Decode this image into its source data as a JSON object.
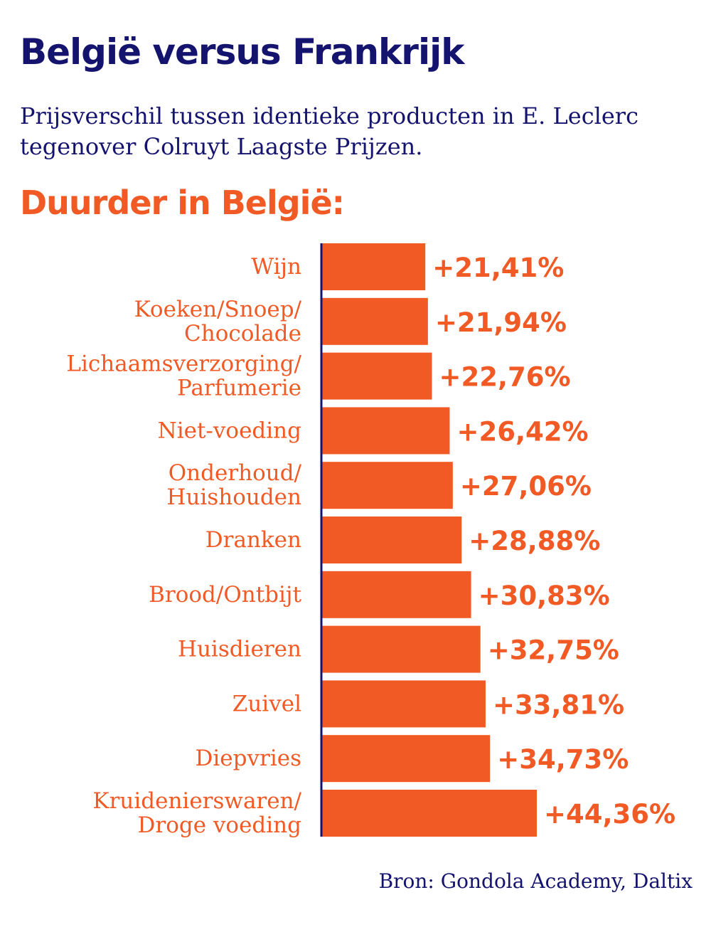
{
  "title": "België versus Frankrijk",
  "subtitle": "Prijsverschil tussen identieke producten in E. Leclerc tegenover Colruyt Laagste Prijzen.",
  "section_heading": "Duurder in België:",
  "source": "Bron: Gondola Academy, Daltix",
  "colors": {
    "navy": "#14136e",
    "orange": "#f15a24"
  },
  "chart_data": {
    "type": "bar",
    "orientation": "horizontal",
    "categories": [
      [
        "Wijn"
      ],
      [
        "Koeken/Snoep/",
        "Chocolade"
      ],
      [
        "Lichaamsverzorging/",
        "Parfumerie"
      ],
      [
        "Niet-voeding"
      ],
      [
        "Onderhoud/",
        "Huishouden"
      ],
      [
        "Dranken"
      ],
      [
        "Brood/Ontbijt"
      ],
      [
        "Huisdieren"
      ],
      [
        "Zuivel"
      ],
      [
        "Diepvries"
      ],
      [
        "Kruidenierswaren/",
        "Droge voeding"
      ]
    ],
    "values": [
      21.41,
      21.94,
      22.76,
      26.42,
      27.06,
      28.88,
      30.83,
      32.75,
      33.81,
      34.73,
      44.36
    ],
    "value_labels": [
      "+21,41%",
      "+21,94%",
      "+22,76%",
      "+26,42%",
      "+27,06%",
      "+28,88%",
      "+30,83%",
      "+32,75%",
      "+33,81%",
      "+34,73%",
      "+44,36%"
    ],
    "unit": "%",
    "xlim": [
      0,
      44.36
    ],
    "grid": false,
    "legend": "none"
  }
}
